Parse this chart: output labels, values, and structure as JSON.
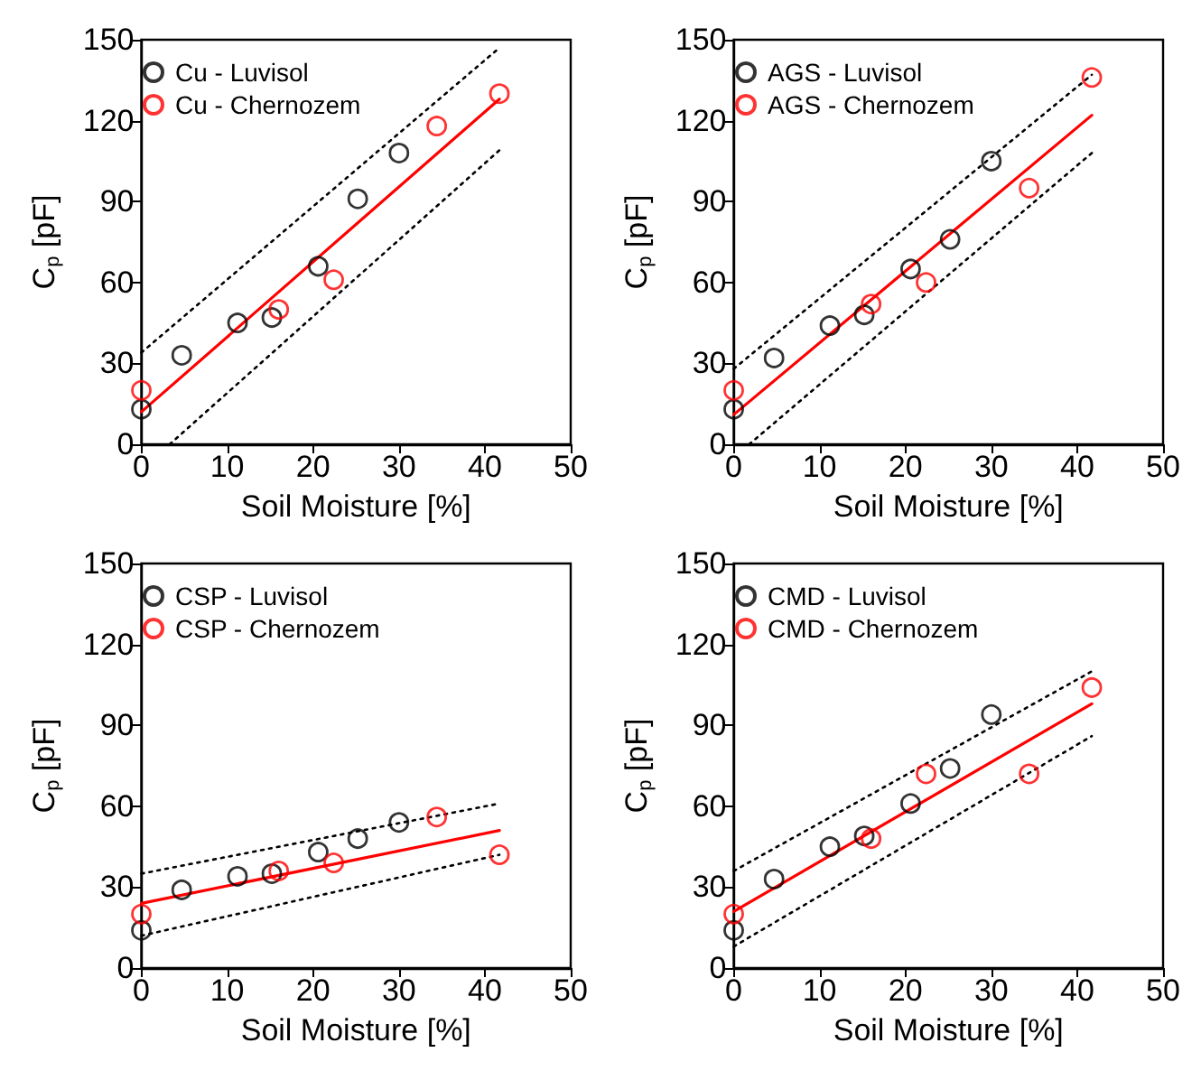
{
  "chart_data": [
    {
      "type": "scatter",
      "xlabel": "Soil Moisture [%]",
      "ylabel": "C$_{p}$ [pF]",
      "xlim": [
        0,
        50
      ],
      "ylim": [
        0,
        150
      ],
      "xticks": [
        0,
        10,
        20,
        30,
        40,
        50
      ],
      "yticks": [
        0,
        30,
        60,
        90,
        120,
        150
      ],
      "grid": false,
      "legend": "top left",
      "series": [
        {
          "name": "Cu - Luvisol",
          "color": "#000000",
          "marker": "circle",
          "x": [
            0,
            4.7,
            11.2,
            15.2,
            20.6,
            25.2,
            30.0
          ],
          "values": [
            13,
            33,
            45,
            47,
            66,
            91,
            108
          ]
        },
        {
          "name": "Cu - Chernozem",
          "color": "#ff0000",
          "marker": "circle",
          "x": [
            0,
            16,
            22.4,
            34.4,
            41.7
          ],
          "values": [
            20,
            50,
            61,
            118,
            130
          ]
        },
        {
          "type": "line",
          "color": "#ff0000",
          "marker": "none",
          "line_style": "solid",
          "x": [
            0,
            41.7
          ],
          "values": [
            12,
            128
          ]
        },
        {
          "type": "line",
          "color": "#000000",
          "marker": "none",
          "line_style": "dotted",
          "x": [
            0,
            41.7
          ],
          "values": [
            34,
            147
          ]
        },
        {
          "type": "line",
          "color": "#000000",
          "marker": "none",
          "line_style": "dotted",
          "x": [
            3.3,
            41.7
          ],
          "values": [
            0,
            109
          ]
        }
      ]
    },
    {
      "type": "scatter",
      "xlabel": "Soil Moisture [%]",
      "ylabel": "C$_{p}$ [pF]",
      "xlim": [
        0,
        50
      ],
      "ylim": [
        0,
        150
      ],
      "xticks": [
        0,
        10,
        20,
        30,
        40,
        50
      ],
      "yticks": [
        0,
        30,
        60,
        90,
        120,
        150
      ],
      "grid": false,
      "legend": "top left",
      "series": [
        {
          "name": "AGS - Luvisol",
          "color": "#000000",
          "marker": "circle",
          "x": [
            0,
            4.7,
            11.2,
            15.2,
            20.6,
            25.2,
            30.0
          ],
          "values": [
            13,
            32,
            44,
            48,
            65,
            76,
            105
          ]
        },
        {
          "name": "AGS - Chernozem",
          "color": "#ff0000",
          "marker": "circle",
          "x": [
            0,
            16,
            22.4,
            34.4,
            41.7
          ],
          "values": [
            20,
            52,
            60,
            95,
            136
          ]
        },
        {
          "type": "line",
          "color": "#ff0000",
          "marker": "none",
          "line_style": "solid",
          "x": [
            0,
            41.7
          ],
          "values": [
            11,
            122
          ]
        },
        {
          "type": "line",
          "color": "#000000",
          "marker": "none",
          "line_style": "dotted",
          "x": [
            0,
            41.7
          ],
          "values": [
            28,
            137
          ]
        },
        {
          "type": "line",
          "color": "#000000",
          "marker": "none",
          "line_style": "dotted",
          "x": [
            1.8,
            41.7
          ],
          "values": [
            0,
            108
          ]
        }
      ]
    },
    {
      "type": "scatter",
      "xlabel": "Soil Moisture [%]",
      "ylabel": "C$_{p}$ [pF]",
      "xlim": [
        0,
        50
      ],
      "ylim": [
        0,
        150
      ],
      "xticks": [
        0,
        10,
        20,
        30,
        40,
        50
      ],
      "yticks": [
        0,
        30,
        60,
        90,
        120,
        150
      ],
      "grid": false,
      "legend": "top left",
      "series": [
        {
          "name": "CSP - Luvisol",
          "color": "#000000",
          "marker": "circle",
          "x": [
            0,
            4.7,
            11.2,
            15.2,
            20.6,
            25.2,
            30.0
          ],
          "values": [
            14,
            29,
            34,
            35,
            43,
            48,
            54
          ]
        },
        {
          "name": "CSP - Chernozem",
          "color": "#ff0000",
          "marker": "circle",
          "x": [
            0,
            16,
            22.4,
            34.4,
            41.7
          ],
          "values": [
            20,
            36,
            39,
            56,
            42
          ]
        },
        {
          "type": "line",
          "color": "#ff0000",
          "marker": "none",
          "line_style": "solid",
          "x": [
            0,
            41.7
          ],
          "values": [
            24,
            51
          ]
        },
        {
          "type": "line",
          "color": "#000000",
          "marker": "none",
          "line_style": "dotted",
          "x": [
            0,
            41.7
          ],
          "values": [
            35,
            61
          ]
        },
        {
          "type": "line",
          "color": "#000000",
          "marker": "none",
          "line_style": "dotted",
          "x": [
            0,
            41.7
          ],
          "values": [
            12,
            42
          ]
        }
      ]
    },
    {
      "type": "scatter",
      "xlabel": "Soil Moisture [%]",
      "ylabel": "C$_{p}$ [pF]",
      "xlim": [
        0,
        50
      ],
      "ylim": [
        0,
        150
      ],
      "xticks": [
        0,
        10,
        20,
        30,
        40,
        50
      ],
      "yticks": [
        0,
        30,
        60,
        90,
        120,
        150
      ],
      "grid": false,
      "legend": "top left",
      "series": [
        {
          "name": "CMD - Luvisol",
          "color": "#000000",
          "marker": "circle",
          "x": [
            0,
            4.7,
            11.2,
            15.2,
            20.6,
            25.2,
            30.0
          ],
          "values": [
            14,
            33,
            45,
            49,
            61,
            74,
            94
          ]
        },
        {
          "name": "CMD - Chernozem",
          "color": "#ff0000",
          "marker": "circle",
          "x": [
            0,
            16,
            22.4,
            34.4,
            41.7
          ],
          "values": [
            20,
            48,
            72,
            72,
            104
          ]
        },
        {
          "type": "line",
          "color": "#ff0000",
          "marker": "none",
          "line_style": "solid",
          "x": [
            0,
            41.7
          ],
          "values": [
            21,
            98
          ]
        },
        {
          "type": "line",
          "color": "#000000",
          "marker": "none",
          "line_style": "dotted",
          "x": [
            0,
            41.7
          ],
          "values": [
            36,
            110
          ]
        },
        {
          "type": "line",
          "color": "#000000",
          "marker": "none",
          "line_style": "dotted",
          "x": [
            0,
            41.7
          ],
          "values": [
            8,
            86
          ]
        }
      ]
    }
  ]
}
